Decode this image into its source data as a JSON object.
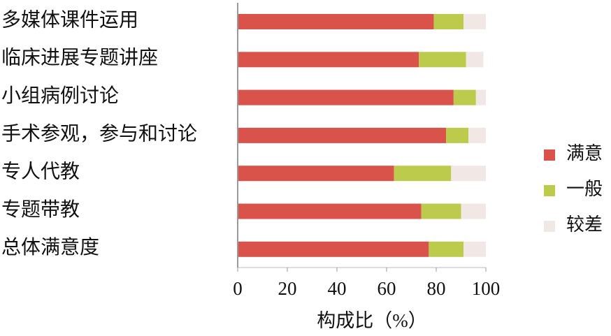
{
  "chart_data": {
    "type": "stacked-barh",
    "x_label": "构成比（%）",
    "categories": [
      "多媒体课件运用",
      "临床进展专题讲座",
      "小组病例讨论",
      "手术参观，参与和讨论",
      "专人代教",
      "专题带教",
      "总体满意度"
    ],
    "series": [
      {
        "name": "满意",
        "color": "#d9534b",
        "values": [
          79,
          73,
          87,
          84,
          63,
          74,
          77
        ]
      },
      {
        "name": "一般",
        "color": "#bccb4b",
        "values": [
          12,
          19,
          9,
          9,
          23,
          16,
          14
        ]
      },
      {
        "name": "较差",
        "color": "#f1e7e5",
        "values": [
          9,
          7,
          4,
          7,
          14,
          10,
          9
        ]
      }
    ],
    "xlim": [
      0,
      100
    ],
    "xticks": [
      0,
      20,
      40,
      60,
      80,
      100
    ],
    "legend": "right"
  }
}
